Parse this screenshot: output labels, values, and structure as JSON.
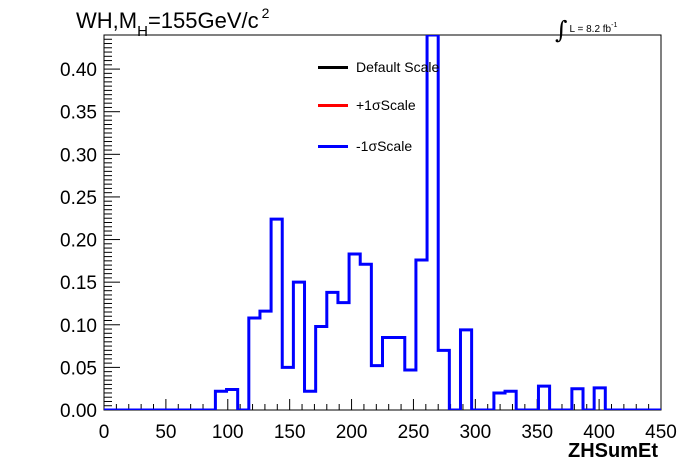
{
  "title": {
    "prefix": "WH,M",
    "subscript": "H",
    "middle": "=155GeV/c",
    "superscript": "2"
  },
  "luminosity": {
    "integral_symbol": "∫",
    "text": "L = 8.2 fb",
    "superscript": "-1"
  },
  "colors": {
    "default": "#000000",
    "plus": "#ff0000",
    "minus": "#0000ff"
  },
  "chart_data": {
    "type": "line",
    "subtype": "step-histogram",
    "xlabel": "ZHSumEt",
    "ylabel": "",
    "xlim": [
      0,
      450
    ],
    "ylim": [
      0,
      0.44
    ],
    "x_ticks": [
      "0",
      "50",
      "100",
      "150",
      "200",
      "250",
      "300",
      "350",
      "400",
      "450"
    ],
    "y_ticks": [
      "0.00",
      "0.05",
      "0.10",
      "0.15",
      "0.20",
      "0.25",
      "0.30",
      "0.35",
      "0.40"
    ],
    "legend": [
      {
        "label": "Default Scale",
        "color": "#000000"
      },
      {
        "label": "+1σScale",
        "color": "#ff0000"
      },
      {
        "label": "-1σScale",
        "color": "#0000ff"
      }
    ],
    "legend_position": "top-center",
    "bin_edges": [
      0,
      9,
      18,
      27,
      36,
      45,
      54,
      63,
      72,
      81,
      90,
      99,
      108,
      117,
      126,
      135,
      144,
      153,
      162,
      171,
      180,
      189,
      198,
      207,
      216,
      225,
      234,
      243,
      252,
      261,
      270,
      279,
      288,
      297,
      306,
      315,
      324,
      333,
      342,
      351,
      360,
      369,
      378,
      387,
      396,
      405,
      414,
      423,
      432,
      441,
      450
    ],
    "series": [
      {
        "name": "-1σScale",
        "color": "#0000ff",
        "values": [
          0,
          0,
          0,
          0,
          0,
          0,
          0,
          0,
          0,
          0,
          0.022,
          0.024,
          0,
          0.108,
          0.116,
          0.224,
          0.05,
          0.15,
          0.022,
          0.098,
          0.138,
          0.126,
          0.183,
          0.171,
          0.052,
          0.085,
          0.085,
          0.047,
          0.176,
          0.44,
          0.07,
          0,
          0.094,
          0,
          0,
          0.02,
          0.022,
          0,
          0,
          0.028,
          0,
          0,
          0.025,
          0,
          0.026,
          0,
          0,
          0,
          0,
          0
        ]
      }
    ]
  }
}
